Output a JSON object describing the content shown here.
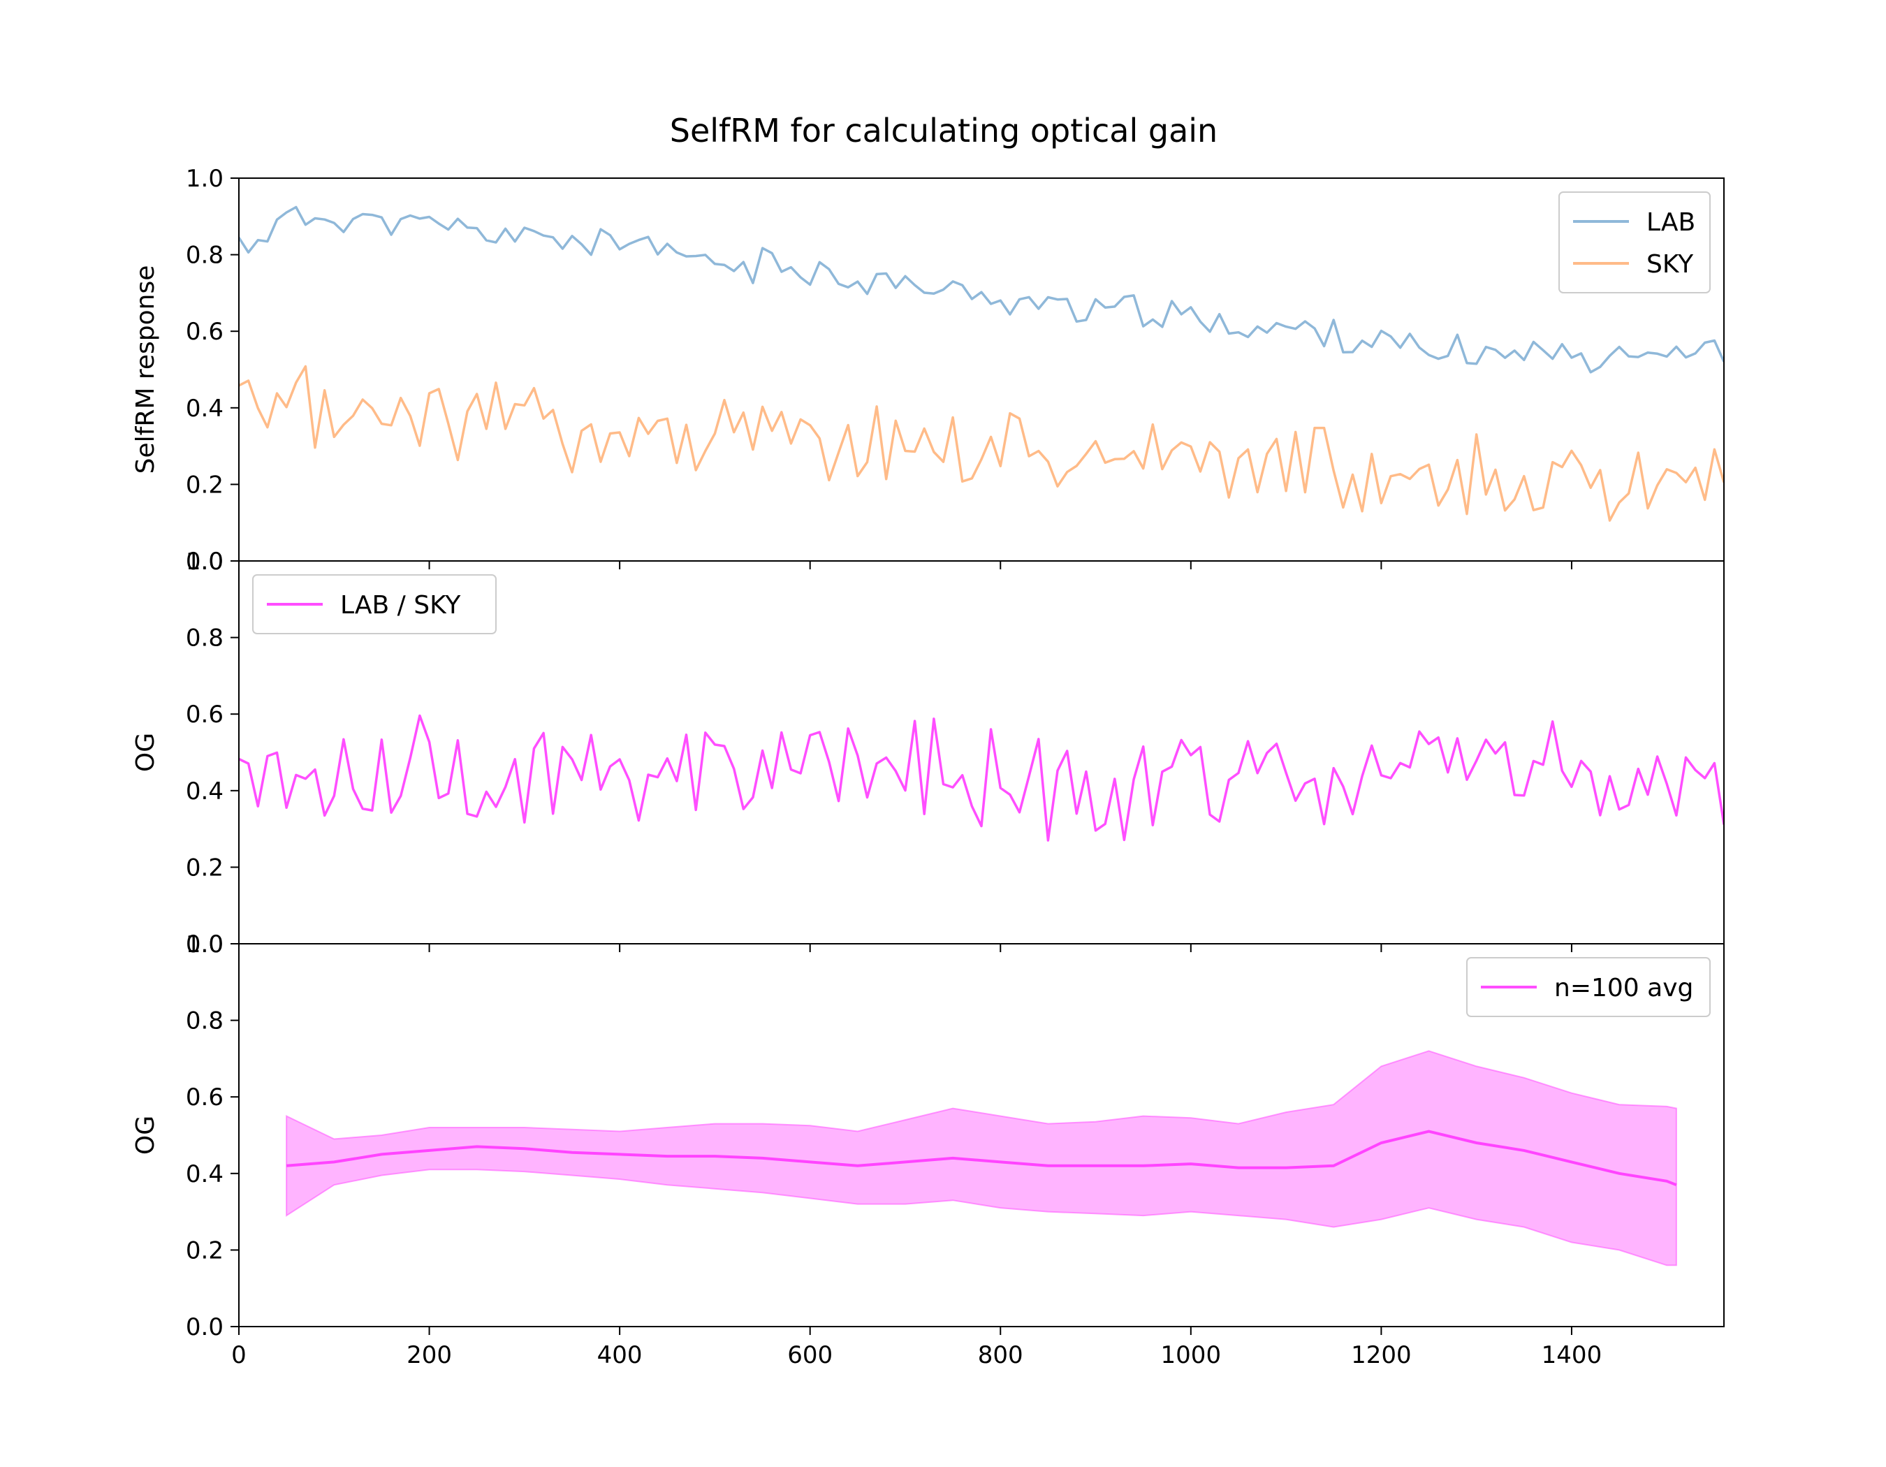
{
  "chart_data": {
    "title": "SelfRM for calculating optical gain",
    "xlim": [
      0,
      1560
    ],
    "x_ticks": [
      0,
      200,
      400,
      600,
      800,
      1000,
      1200,
      1400
    ],
    "y_ticks": [
      0.0,
      0.2,
      0.4,
      0.6,
      0.8,
      1.0
    ],
    "panels": [
      {
        "type": "line",
        "ylabel": "SelfRM response",
        "ylim": [
          0,
          1
        ],
        "legend_position": "top-right",
        "series": [
          {
            "name": "LAB",
            "color": "#8fb8d9",
            "x_start": 0,
            "x_step": 10,
            "trend": [
              0.82,
              0.89,
              0.9,
              0.89,
              0.87,
              0.86,
              0.85,
              0.84,
              0.83,
              0.8,
              0.78,
              0.77,
              0.76,
              0.74,
              0.72,
              0.7,
              0.69,
              0.67,
              0.66,
              0.65,
              0.63,
              0.62,
              0.6,
              0.6,
              0.57,
              0.54,
              0.54,
              0.55,
              0.54,
              0.55,
              0.55,
              0.55,
              0.54
            ],
            "trend_x_step": 50,
            "noise_amplitude": 0.035
          },
          {
            "name": "SKY",
            "color": "#ffbb88",
            "x_start": 0,
            "x_step": 10,
            "trend": [
              0.36,
              0.38,
              0.39,
              0.39,
              0.38,
              0.38,
              0.37,
              0.36,
              0.35,
              0.34,
              0.33,
              0.32,
              0.31,
              0.31,
              0.3,
              0.3,
              0.29,
              0.29,
              0.28,
              0.28,
              0.27,
              0.26,
              0.26,
              0.25,
              0.24,
              0.23,
              0.22,
              0.21,
              0.21,
              0.2,
              0.2,
              0.2,
              0.2
            ],
            "trend_x_step": 50,
            "noise_amplitude": 0.09
          }
        ]
      },
      {
        "type": "line",
        "ylabel": "OG",
        "ylim": [
          0,
          1
        ],
        "legend_position": "top-left",
        "series": [
          {
            "name": "LAB / SKY",
            "color": "#ff44ff",
            "x_start": 0,
            "x_step": 10,
            "trend": [
              0.42,
              0.44,
              0.46,
              0.46,
              0.46,
              0.46,
              0.45,
              0.44,
              0.44,
              0.44,
              0.44,
              0.43,
              0.42,
              0.43,
              0.43,
              0.42,
              0.42,
              0.42,
              0.42,
              0.42,
              0.42,
              0.42,
              0.42,
              0.42,
              0.48,
              0.5,
              0.49,
              0.47,
              0.45,
              0.43,
              0.4,
              0.39,
              0.37
            ],
            "trend_x_step": 50,
            "noise_amplitude": 0.12
          }
        ]
      },
      {
        "type": "area",
        "ylabel": "OG",
        "ylim": [
          0,
          1
        ],
        "legend_position": "top-right",
        "series": [
          {
            "name": "n=100 avg",
            "color": "#ff44ff",
            "x": [
              50,
              100,
              150,
              200,
              250,
              300,
              350,
              400,
              450,
              500,
              550,
              600,
              650,
              700,
              750,
              800,
              850,
              900,
              950,
              1000,
              1050,
              1100,
              1150,
              1200,
              1250,
              1300,
              1350,
              1400,
              1450,
              1500,
              1510
            ],
            "mean": [
              0.42,
              0.43,
              0.45,
              0.46,
              0.47,
              0.465,
              0.455,
              0.45,
              0.445,
              0.445,
              0.44,
              0.43,
              0.42,
              0.43,
              0.44,
              0.43,
              0.42,
              0.42,
              0.42,
              0.425,
              0.415,
              0.415,
              0.42,
              0.48,
              0.51,
              0.48,
              0.46,
              0.43,
              0.4,
              0.38,
              0.37
            ],
            "upper": [
              0.55,
              0.49,
              0.5,
              0.52,
              0.52,
              0.52,
              0.515,
              0.51,
              0.52,
              0.53,
              0.53,
              0.525,
              0.51,
              0.54,
              0.57,
              0.55,
              0.53,
              0.535,
              0.55,
              0.545,
              0.53,
              0.56,
              0.58,
              0.68,
              0.72,
              0.68,
              0.65,
              0.61,
              0.58,
              0.575,
              0.57
            ],
            "lower": [
              0.29,
              0.37,
              0.395,
              0.41,
              0.41,
              0.405,
              0.395,
              0.385,
              0.37,
              0.36,
              0.35,
              0.335,
              0.32,
              0.32,
              0.33,
              0.31,
              0.3,
              0.295,
              0.29,
              0.3,
              0.29,
              0.28,
              0.26,
              0.28,
              0.31,
              0.28,
              0.26,
              0.22,
              0.2,
              0.16,
              0.16
            ]
          }
        ]
      }
    ]
  }
}
